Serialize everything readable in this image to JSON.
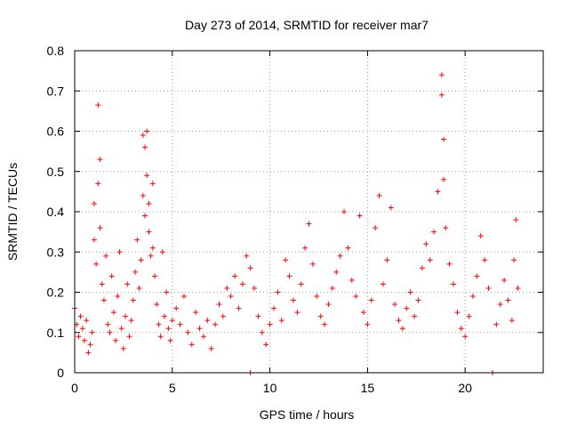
{
  "chart_data": {
    "type": "scatter",
    "title": "Day 273 of 2014, SRMTID for receiver mar7",
    "xlabel": "GPS time / hours",
    "ylabel": "SRMTID / TECUs",
    "xlim": [
      0,
      24
    ],
    "ylim": [
      0,
      0.8
    ],
    "xticks": [
      "0",
      "5",
      "10",
      "15",
      "20"
    ],
    "xtick_values": [
      0,
      5,
      10,
      15,
      20
    ],
    "yticks": [
      "0",
      "0.1",
      "0.2",
      "0.3",
      "0.4",
      "0.5",
      "0.6",
      "0.7",
      "0.8"
    ],
    "ytick_values": [
      0,
      0.1,
      0.2,
      0.3,
      0.4,
      0.5,
      0.6,
      0.7,
      0.8
    ],
    "grid": true,
    "marker": "+",
    "color": "#ff0000",
    "series": [
      {
        "name": "SRMTID",
        "points": [
          [
            0.0,
            0.16
          ],
          [
            0.1,
            0.12
          ],
          [
            0.2,
            0.09
          ],
          [
            0.3,
            0.14
          ],
          [
            0.4,
            0.11
          ],
          [
            0.5,
            0.08
          ],
          [
            0.6,
            0.13
          ],
          [
            0.7,
            0.05
          ],
          [
            0.8,
            0.07
          ],
          [
            0.9,
            0.1
          ],
          [
            1.0,
            0.42
          ],
          [
            1.0,
            0.33
          ],
          [
            1.1,
            0.27
          ],
          [
            1.2,
            0.47
          ],
          [
            1.2,
            0.665
          ],
          [
            1.3,
            0.53
          ],
          [
            1.3,
            0.36
          ],
          [
            1.4,
            0.22
          ],
          [
            1.5,
            0.18
          ],
          [
            1.6,
            0.29
          ],
          [
            1.7,
            0.12
          ],
          [
            1.8,
            0.1
          ],
          [
            1.9,
            0.24
          ],
          [
            2.0,
            0.15
          ],
          [
            2.1,
            0.08
          ],
          [
            2.2,
            0.19
          ],
          [
            2.3,
            0.3
          ],
          [
            2.4,
            0.11
          ],
          [
            2.5,
            0.06
          ],
          [
            2.6,
            0.14
          ],
          [
            2.7,
            0.22
          ],
          [
            2.8,
            0.09
          ],
          [
            2.9,
            0.13
          ],
          [
            3.0,
            0.18
          ],
          [
            3.1,
            0.25
          ],
          [
            3.2,
            0.33
          ],
          [
            3.3,
            0.21
          ],
          [
            3.4,
            0.28
          ],
          [
            3.5,
            0.44
          ],
          [
            3.5,
            0.59
          ],
          [
            3.6,
            0.56
          ],
          [
            3.6,
            0.39
          ],
          [
            3.7,
            0.49
          ],
          [
            3.7,
            0.6
          ],
          [
            3.8,
            0.42
          ],
          [
            3.8,
            0.35
          ],
          [
            3.9,
            0.29
          ],
          [
            4.0,
            0.47
          ],
          [
            4.0,
            0.31
          ],
          [
            4.1,
            0.24
          ],
          [
            4.2,
            0.17
          ],
          [
            4.3,
            0.12
          ],
          [
            4.4,
            0.09
          ],
          [
            4.5,
            0.3
          ],
          [
            4.6,
            0.14
          ],
          [
            4.7,
            0.2
          ],
          [
            4.8,
            0.11
          ],
          [
            4.9,
            0.08
          ],
          [
            5.0,
            0.13
          ],
          [
            5.2,
            0.16
          ],
          [
            5.4,
            0.12
          ],
          [
            5.6,
            0.19
          ],
          [
            5.8,
            0.1
          ],
          [
            6.0,
            0.07
          ],
          [
            6.2,
            0.15
          ],
          [
            6.4,
            0.11
          ],
          [
            6.6,
            0.09
          ],
          [
            6.8,
            0.13
          ],
          [
            7.0,
            0.06
          ],
          [
            7.2,
            0.12
          ],
          [
            7.4,
            0.17
          ],
          [
            7.6,
            0.14
          ],
          [
            7.8,
            0.21
          ],
          [
            8.0,
            0.19
          ],
          [
            8.2,
            0.24
          ],
          [
            8.4,
            0.16
          ],
          [
            8.6,
            0.22
          ],
          [
            8.8,
            0.29
          ],
          [
            9.0,
            0.0
          ],
          [
            9.0,
            0.26
          ],
          [
            9.2,
            0.21
          ],
          [
            9.4,
            0.14
          ],
          [
            9.6,
            0.1
          ],
          [
            9.8,
            0.07
          ],
          [
            10.0,
            0.12
          ],
          [
            10.2,
            0.16
          ],
          [
            10.4,
            0.2
          ],
          [
            10.6,
            0.13
          ],
          [
            10.8,
            0.28
          ],
          [
            11.0,
            0.24
          ],
          [
            11.2,
            0.18
          ],
          [
            11.4,
            0.15
          ],
          [
            11.6,
            0.22
          ],
          [
            11.8,
            0.31
          ],
          [
            12.0,
            0.37
          ],
          [
            12.2,
            0.27
          ],
          [
            12.4,
            0.19
          ],
          [
            12.6,
            0.14
          ],
          [
            12.8,
            0.12
          ],
          [
            13.0,
            0.17
          ],
          [
            13.2,
            0.21
          ],
          [
            13.4,
            0.25
          ],
          [
            13.6,
            0.29
          ],
          [
            13.8,
            0.4
          ],
          [
            14.0,
            0.31
          ],
          [
            14.2,
            0.23
          ],
          [
            14.4,
            0.19
          ],
          [
            14.6,
            0.39
          ],
          [
            14.8,
            0.15
          ],
          [
            15.0,
            0.12
          ],
          [
            15.2,
            0.18
          ],
          [
            15.4,
            0.36
          ],
          [
            15.6,
            0.44
          ],
          [
            15.8,
            0.22
          ],
          [
            16.0,
            0.28
          ],
          [
            16.2,
            0.41
          ],
          [
            16.4,
            0.17
          ],
          [
            16.6,
            0.13
          ],
          [
            16.8,
            0.11
          ],
          [
            17.0,
            0.16
          ],
          [
            17.2,
            0.2
          ],
          [
            17.4,
            0.14
          ],
          [
            17.6,
            0.18
          ],
          [
            17.8,
            0.26
          ],
          [
            18.0,
            0.32
          ],
          [
            18.2,
            0.28
          ],
          [
            18.4,
            0.35
          ],
          [
            18.6,
            0.45
          ],
          [
            18.8,
            0.74
          ],
          [
            18.8,
            0.69
          ],
          [
            18.9,
            0.58
          ],
          [
            18.9,
            0.48
          ],
          [
            19.0,
            0.36
          ],
          [
            19.2,
            0.27
          ],
          [
            19.4,
            0.22
          ],
          [
            19.6,
            0.15
          ],
          [
            19.8,
            0.11
          ],
          [
            20.0,
            0.09
          ],
          [
            20.2,
            0.14
          ],
          [
            20.4,
            0.19
          ],
          [
            20.6,
            0.24
          ],
          [
            20.8,
            0.34
          ],
          [
            21.0,
            0.28
          ],
          [
            21.2,
            0.21
          ],
          [
            21.4,
            0.0
          ],
          [
            21.6,
            0.12
          ],
          [
            21.8,
            0.17
          ],
          [
            22.0,
            0.23
          ],
          [
            22.2,
            0.18
          ],
          [
            22.4,
            0.13
          ],
          [
            22.5,
            0.28
          ],
          [
            22.6,
            0.38
          ],
          [
            22.7,
            0.21
          ]
        ]
      }
    ]
  }
}
